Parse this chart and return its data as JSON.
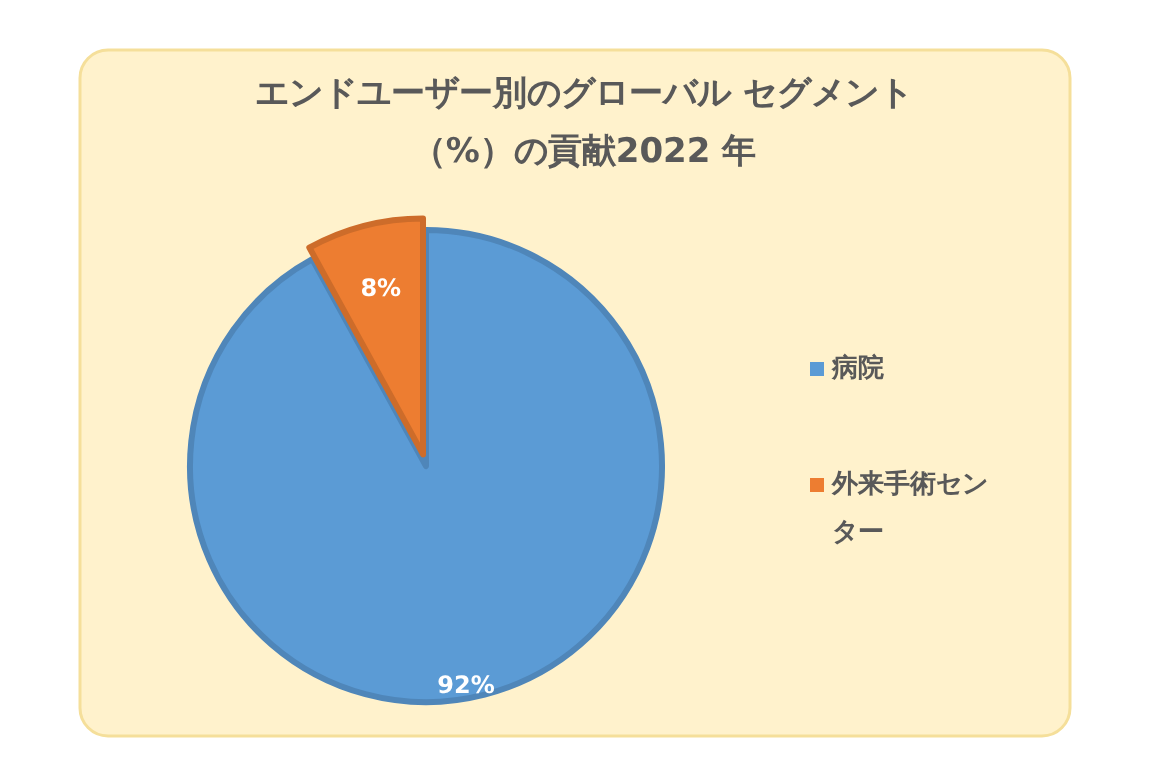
{
  "chart_data": {
    "type": "pie",
    "title": "エンドユーザー別のグローバル セグメント（%）の貢献2022 年",
    "categories": [
      "病院",
      "外来手術センター"
    ],
    "values": [
      92,
      8
    ],
    "colors": [
      "#5b9bd5",
      "#ed7d31"
    ],
    "value_labels": [
      "92%",
      "8%"
    ],
    "legend": "right"
  }
}
